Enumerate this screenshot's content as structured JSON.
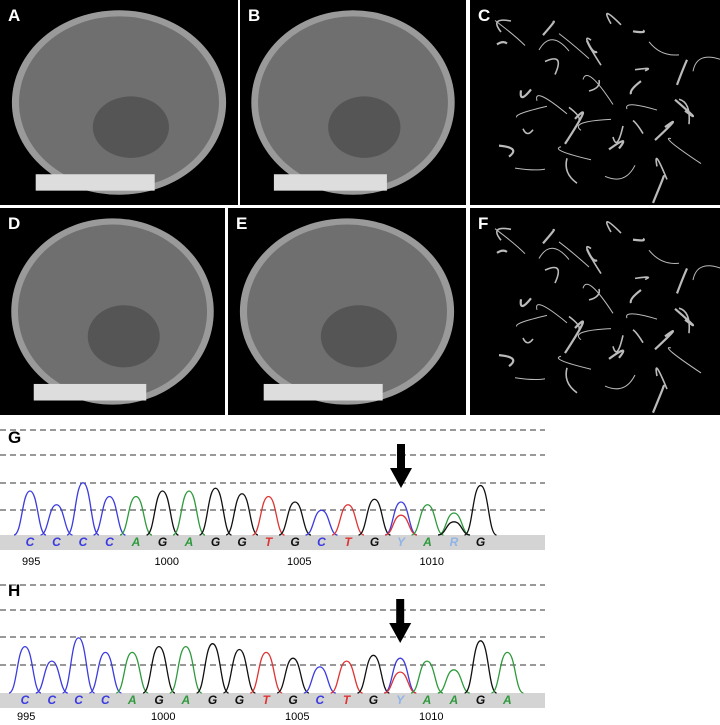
{
  "panels": [
    {
      "label": "A",
      "kind": "ct-sagittal"
    },
    {
      "label": "B",
      "kind": "ct-sagittal"
    },
    {
      "label": "C",
      "kind": "angiogram"
    },
    {
      "label": "D",
      "kind": "ct-sagittal"
    },
    {
      "label": "E",
      "kind": "ct-sagittal"
    },
    {
      "label": "F",
      "kind": "angiogram"
    }
  ],
  "chromatograms": [
    {
      "label": "G",
      "bases": [
        "C",
        "C",
        "C",
        "C",
        "A",
        "G",
        "A",
        "G",
        "G",
        "T",
        "G",
        "C",
        "T",
        "G",
        "Y",
        "A",
        "R",
        "G"
      ],
      "positions": [
        "995",
        "1000",
        "1005",
        "1010"
      ],
      "arrow_at_base": 14
    },
    {
      "label": "H",
      "bases": [
        "C",
        "C",
        "C",
        "C",
        "A",
        "G",
        "A",
        "G",
        "G",
        "T",
        "G",
        "C",
        "T",
        "G",
        "Y",
        "A",
        "A",
        "G",
        "A"
      ],
      "positions": [
        "995",
        "1000",
        "1005",
        "1010"
      ],
      "arrow_at_base": 14
    }
  ],
  "colors": {
    "A": "#2e9a3c",
    "C": "#3b3be0",
    "G": "#111111",
    "T": "#e03333",
    "Y": "#8fb4e6",
    "R": "#8fb4e6"
  }
}
